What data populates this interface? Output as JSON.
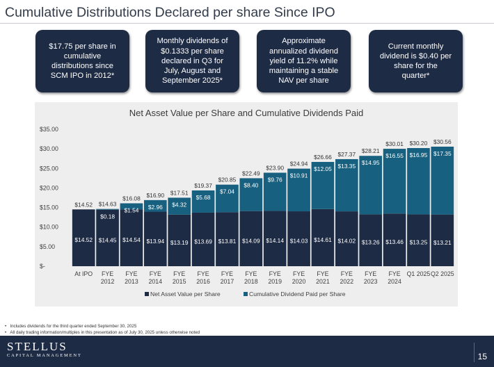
{
  "page": {
    "title": "Cumulative Distributions Declared per share Since IPO",
    "cards": [
      "$17.75 per share in\ncumulative\ndistributions since\nSCM IPO in 2012*",
      "Monthly dividends of\n$0.1333 per share\ndeclared in Q3 for\nJuly, August and\nSeptember 2025*",
      "Approximate\nannualized dividend\nyield of 11.2% while\nmaintaining a stable\nNAV per share",
      "Current monthly\ndividend is $0.40 per\nshare for the\nquarter*"
    ],
    "footnotes": [
      "Includes dividends for the third quarter ended September 30, 2025",
      "All daily trading information/multiples in this presentation as of July 30, 2025 unless otherwise noted"
    ],
    "footnote_bullet": "•",
    "logo_main": "STELLUS",
    "logo_sub": "CAPITAL MANAGEMENT",
    "page_number": "15"
  },
  "chart_data": {
    "type": "bar",
    "stacked": true,
    "title": "Net Asset Value per Share and Cumulative Dividends Paid",
    "categories": [
      [
        "At IPO"
      ],
      [
        "FYE",
        "2012"
      ],
      [
        "FYE",
        "2013"
      ],
      [
        "FYE",
        "2014"
      ],
      [
        "FYE",
        "2015"
      ],
      [
        "FYE",
        "2016"
      ],
      [
        "FYE",
        "2017"
      ],
      [
        "FYE",
        "2018"
      ],
      [
        "FYE",
        "2019"
      ],
      [
        "FYE",
        "2020"
      ],
      [
        "FYE",
        "2021"
      ],
      [
        "FYE",
        "2022"
      ],
      [
        "FYE",
        "2023"
      ],
      [
        "FYE",
        "2024"
      ],
      [
        "Q1 2025"
      ],
      [
        "Q2 2025"
      ]
    ],
    "series": [
      {
        "name": "Net Asset Value per Share",
        "color": "#1e2b45",
        "values": [
          14.52,
          14.45,
          14.54,
          13.94,
          13.19,
          13.69,
          13.81,
          14.09,
          14.14,
          14.03,
          14.61,
          14.02,
          13.26,
          13.46,
          13.25,
          13.21
        ],
        "labels": [
          "$14.52",
          "$14.45",
          "$14.54",
          "$13.94",
          "$13.19",
          "$13.69",
          "$13.81",
          "$14.09",
          "$14.14",
          "$14.03",
          "$14.61",
          "$14.02",
          "$13.26",
          "$13.46",
          "$13.25",
          "$13.21"
        ]
      },
      {
        "name": "Cumulative Dividend Paid per Share",
        "color": "#17607f",
        "values": [
          0,
          0.18,
          1.54,
          2.96,
          4.32,
          5.68,
          7.04,
          8.4,
          9.76,
          10.91,
          12.05,
          13.35,
          14.95,
          16.55,
          16.95,
          17.35
        ],
        "labels": [
          "",
          "$0.18",
          "$1.54",
          "$2.96",
          "$4.32",
          "$5.68",
          "$7.04",
          "$8.40",
          "$9.76",
          "$10.91",
          "$12.05",
          "$13.35",
          "$14.95",
          "$16.55",
          "$16.95",
          "$17.35"
        ]
      }
    ],
    "totals": [
      14.52,
      14.63,
      16.08,
      16.9,
      17.51,
      19.37,
      20.85,
      22.49,
      23.9,
      24.94,
      26.66,
      27.37,
      28.21,
      30.01,
      30.2,
      30.56
    ],
    "total_labels": [
      "$14.52",
      "$14.63",
      "$16.08",
      "$16.90",
      "$17.51",
      "$19.37",
      "$20.85",
      "$22.49",
      "$23.90",
      "$24.94",
      "$26.66",
      "$27.37",
      "$28.21",
      "$30.01",
      "$30.20",
      "$30.56"
    ],
    "yticks": [
      0,
      5,
      10,
      15,
      20,
      25,
      30,
      35
    ],
    "ytick_labels": [
      "$-",
      "$5.00",
      "$10.00",
      "$15.00",
      "$20.00",
      "$25.00",
      "$30.00",
      "$35.00"
    ],
    "ylim": [
      0,
      35
    ],
    "grid": false,
    "legend_position": "bottom"
  }
}
